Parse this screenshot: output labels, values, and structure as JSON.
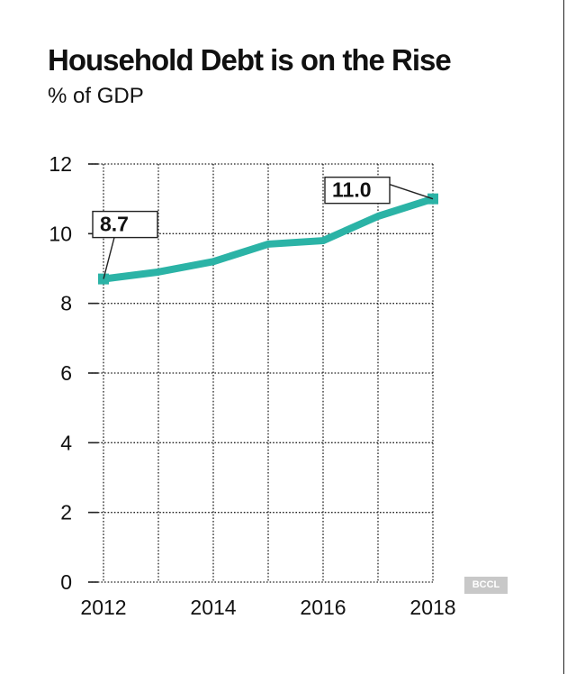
{
  "header": {
    "title": "Household Debt is on the Rise",
    "subtitle": "% of GDP"
  },
  "source_badge": "BCCL",
  "colors": {
    "line": "#2bb3a6",
    "grid": "#222222",
    "text": "#111111"
  },
  "chart_data": {
    "type": "line",
    "title": "Household Debt is on the Rise",
    "subtitle": "% of GDP",
    "xlabel": "",
    "ylabel": "",
    "x": [
      2012,
      2013,
      2014,
      2015,
      2016,
      2017,
      2018
    ],
    "series": [
      {
        "values": [
          8.7,
          8.9,
          9.2,
          9.7,
          9.8,
          10.5,
          11.0
        ]
      }
    ],
    "xlim": [
      2012,
      2018
    ],
    "ylim": [
      0,
      12
    ],
    "x_ticks": [
      "2012",
      "2014",
      "2016",
      "2018"
    ],
    "y_ticks": [
      "0",
      "2",
      "4",
      "6",
      "8",
      "10",
      "12"
    ],
    "grid": true,
    "legend": "none",
    "annotations": [
      {
        "x": 2012,
        "y": 8.7,
        "text": "8.7"
      },
      {
        "x": 2018,
        "y": 11.0,
        "text": "11.0"
      }
    ]
  }
}
